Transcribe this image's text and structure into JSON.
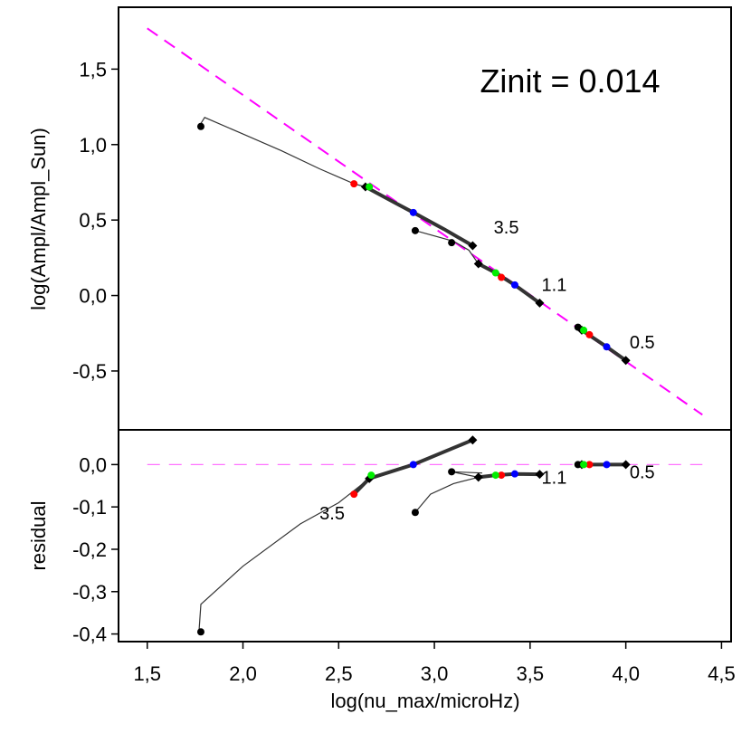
{
  "chart_data": {
    "type": "line",
    "title": "Zinit = 0.014",
    "xlabel": "log(nu_max/microHz)",
    "xlim": [
      1.35,
      4.55
    ],
    "xticks": [
      "1,5",
      "2,0",
      "2,5",
      "3,0",
      "3,5",
      "4,0",
      "4,5"
    ],
    "xtick_values": [
      1.5,
      2.0,
      2.5,
      3.0,
      3.5,
      4.0,
      4.5
    ],
    "colors": {
      "fit": "#ff00ff",
      "track": "#333333",
      "point": "#000000",
      "red": "#ff0000",
      "green": "#00ee00",
      "blue": "#0000ff"
    },
    "top": {
      "ylabel": "log(Ampl/Ampl_Sun)",
      "ylim": [
        -0.89,
        1.91
      ],
      "yticks": [
        "-0,5",
        "0,0",
        "0,5",
        "1,0",
        "1,5"
      ],
      "ytick_values": [
        -0.5,
        0.0,
        0.5,
        1.0,
        1.5
      ],
      "fit_line": {
        "x": [
          1.5,
          4.4
        ],
        "y": [
          1.77,
          -0.79
        ]
      },
      "tracks": [
        {
          "mass": "3.5",
          "label_at": [
            3.31,
            0.41
          ],
          "thin": [
            [
              1.77,
              1.12
            ],
            [
              1.8,
              1.18
            ],
            [
              2.0,
              1.07
            ],
            [
              2.2,
              0.96
            ],
            [
              2.4,
              0.84
            ],
            [
              2.58,
              0.74
            ],
            [
              2.64,
              0.72
            ]
          ],
          "thick": [
            [
              2.64,
              0.72
            ],
            [
              2.8,
              0.61
            ],
            [
              2.89,
              0.55
            ],
            [
              3.05,
              0.44
            ],
            [
              3.2,
              0.33
            ]
          ],
          "start": [
            1.78,
            1.12
          ],
          "diamonds": [
            [
              2.64,
              0.72
            ],
            [
              3.2,
              0.33
            ]
          ],
          "red": [
            2.58,
            0.74
          ],
          "green": [
            2.66,
            0.72
          ],
          "blue": [
            2.89,
            0.55
          ]
        },
        {
          "mass": "1.1",
          "label_at": [
            3.56,
            0.03
          ],
          "thin": [
            [
              2.9,
              0.43
            ],
            [
              3.1,
              0.36
            ],
            [
              3.18,
              0.3
            ],
            [
              3.23,
              0.21
            ]
          ],
          "thick": [
            [
              3.23,
              0.21
            ],
            [
              3.32,
              0.15
            ],
            [
              3.42,
              0.07
            ],
            [
              3.55,
              -0.05
            ]
          ],
          "start": [
            2.9,
            0.43
          ],
          "extra_black": [
            [
              3.09,
              0.35
            ]
          ],
          "diamonds": [
            [
              3.23,
              0.21
            ],
            [
              3.55,
              -0.05
            ]
          ],
          "red": [
            3.35,
            0.12
          ],
          "green": [
            3.32,
            0.15
          ],
          "blue": [
            3.42,
            0.07
          ]
        },
        {
          "mass": "0.5",
          "label_at": [
            4.02,
            -0.35
          ],
          "thin": [
            [
              3.75,
              -0.21
            ],
            [
              3.77,
              -0.23
            ]
          ],
          "thick": [
            [
              3.77,
              -0.23
            ],
            [
              3.9,
              -0.34
            ],
            [
              4.0,
              -0.43
            ]
          ],
          "start": [
            3.75,
            -0.21
          ],
          "diamonds": [
            [
              3.77,
              -0.23
            ],
            [
              4.0,
              -0.43
            ]
          ],
          "red": [
            3.81,
            -0.26
          ],
          "green": [
            3.78,
            -0.23
          ],
          "blue": [
            3.9,
            -0.34
          ]
        }
      ]
    },
    "bottom": {
      "ylabel": "residual",
      "ylim": [
        -0.418,
        0.082
      ],
      "yticks": [
        "-0,4",
        "-0,3",
        "-0,2",
        "-0,1",
        "0,0"
      ],
      "ytick_values": [
        -0.4,
        -0.3,
        -0.2,
        -0.1,
        0.0
      ],
      "zero_line": {
        "x": [
          1.5,
          4.4
        ],
        "y": [
          0.0,
          0.0
        ]
      },
      "tracks": [
        {
          "mass": "3.5",
          "label_at": [
            2.4,
            -0.13
          ],
          "thin": [
            [
              1.77,
              -0.395
            ],
            [
              1.78,
              -0.33
            ],
            [
              2.0,
              -0.24
            ],
            [
              2.3,
              -0.14
            ],
            [
              2.5,
              -0.09
            ],
            [
              2.66,
              -0.033
            ]
          ],
          "thick": [
            [
              2.58,
              -0.07
            ],
            [
              2.66,
              -0.033
            ],
            [
              2.89,
              0.0
            ],
            [
              3.05,
              0.03
            ],
            [
              3.2,
              0.058
            ]
          ],
          "start": [
            1.78,
            -0.395
          ],
          "diamonds": [
            [
              2.66,
              -0.033
            ],
            [
              3.2,
              0.058
            ]
          ],
          "red": [
            2.58,
            -0.07
          ],
          "green": [
            2.67,
            -0.025
          ],
          "blue": [
            2.89,
            0.0
          ]
        },
        {
          "mass": "1.1",
          "label_at": [
            3.56,
            -0.045
          ],
          "thin": [
            [
              2.9,
              -0.113
            ],
            [
              2.98,
              -0.07
            ],
            [
              3.1,
              -0.045
            ],
            [
              3.23,
              -0.03
            ],
            [
              3.09,
              -0.017
            ],
            [
              3.25,
              -0.02
            ]
          ],
          "thick": [
            [
              3.23,
              -0.03
            ],
            [
              3.32,
              -0.025
            ],
            [
              3.42,
              -0.022
            ],
            [
              3.55,
              -0.023
            ]
          ],
          "start": [
            2.9,
            -0.113
          ],
          "extra_black": [
            [
              3.09,
              -0.017
            ]
          ],
          "diamonds": [
            [
              3.23,
              -0.03
            ],
            [
              3.55,
              -0.023
            ]
          ],
          "red": [
            3.35,
            -0.025
          ],
          "green": [
            3.32,
            -0.025
          ],
          "blue": [
            3.42,
            -0.022
          ]
        },
        {
          "mass": "0.5",
          "label_at": [
            4.02,
            -0.032
          ],
          "thin": [
            [
              3.75,
              0.0
            ],
            [
              3.77,
              0.0
            ]
          ],
          "thick": [
            [
              3.77,
              0.0
            ],
            [
              3.9,
              0.0
            ],
            [
              4.0,
              0.0
            ]
          ],
          "start": [
            3.75,
            0.0
          ],
          "diamonds": [
            [
              3.77,
              0.0
            ],
            [
              4.0,
              0.0
            ]
          ],
          "red": [
            3.81,
            0.0
          ],
          "green": [
            3.78,
            0.0
          ],
          "blue": [
            3.9,
            0.0
          ]
        }
      ]
    }
  }
}
